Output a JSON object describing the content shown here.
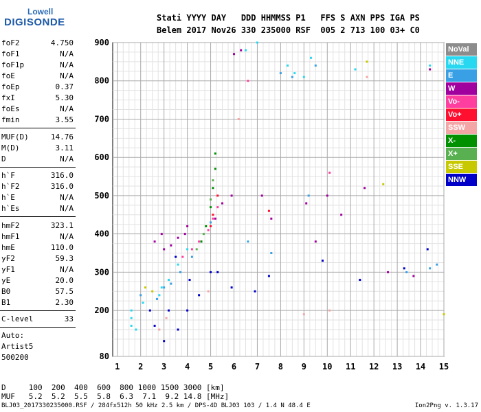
{
  "logo": {
    "top": "Lowell",
    "main": "DIGISONDE"
  },
  "header": {
    "line1": "Stati YYYY DAY   DDD HHMMSS P1   FFS S AXN PPS IGA PS",
    "line2": "Belem 2017 Nov26 330 235000 RSF  005 2 713 100 03+ C0"
  },
  "params": [
    {
      "name": "foF2",
      "value": "4.750"
    },
    {
      "name": "foF1",
      "value": "N/A"
    },
    {
      "name": "foF1p",
      "value": "N/A"
    },
    {
      "name": "foE",
      "value": "N/A"
    },
    {
      "name": "foEp",
      "value": "0.37"
    },
    {
      "name": "fxI",
      "value": "5.30"
    },
    {
      "name": "foEs",
      "value": "N/A"
    },
    {
      "name": "fmin",
      "value": "3.55"
    },
    {
      "name": "MUF(D)",
      "value": "14.76"
    },
    {
      "name": "M(D)",
      "value": "3.11"
    },
    {
      "name": "D",
      "value": "N/A"
    },
    {
      "name": "h`F",
      "value": "316.0"
    },
    {
      "name": "h`F2",
      "value": "316.0"
    },
    {
      "name": "h`E",
      "value": "N/A"
    },
    {
      "name": "h`Es",
      "value": "N/A"
    },
    {
      "name": "hmF2",
      "value": "323.1"
    },
    {
      "name": "hmF1",
      "value": "N/A"
    },
    {
      "name": "hmE",
      "value": "110.0"
    },
    {
      "name": "yF2",
      "value": "59.3"
    },
    {
      "name": "yF1",
      "value": "N/A"
    },
    {
      "name": "yE",
      "value": "20.0"
    },
    {
      "name": "B0",
      "value": "57.5"
    },
    {
      "name": "B1",
      "value": "2.30"
    },
    {
      "name": "C-level",
      "value": "33"
    }
  ],
  "auto": [
    "Auto:",
    "Artist5",
    "500200"
  ],
  "legend": [
    {
      "label": "NoVal",
      "color": "#8c8c8c"
    },
    {
      "label": "NNE",
      "color": "#28d8f0"
    },
    {
      "label": "E",
      "color": "#3aa0e6"
    },
    {
      "label": "W",
      "color": "#a0009e"
    },
    {
      "label": "Vo-",
      "color": "#ff3fa0"
    },
    {
      "label": "Vo+",
      "color": "#ff1030"
    },
    {
      "label": "SSW",
      "color": "#f4a6a6"
    },
    {
      "label": "X-",
      "color": "#009000"
    },
    {
      "label": "X+",
      "color": "#58b050"
    },
    {
      "label": "SSE",
      "color": "#c8c800"
    },
    {
      "label": "NNW",
      "color": "#0000c8"
    }
  ],
  "bottom": {
    "line1": "D     100  200  400  600  800 1000 1500 3000 [km]",
    "line2": "MUF   5.2  5.2  5.5  5.8  6.3  7.1  9.2 14.8 [MHz]"
  },
  "footer": {
    "left": "BLJ03_2017330235000.RSF / 284fx512h 50 kHz 2.5 km / DPS-4D BLJ03 103 / 1.4 N 48.4 E",
    "right": "Ion2Png v. 1.3.17"
  },
  "chart_data": {
    "type": "scatter",
    "xticks": [
      1,
      2,
      3,
      4,
      5,
      6,
      7,
      8,
      9,
      10,
      11,
      12,
      13,
      14,
      15
    ],
    "yticks": [
      80,
      200,
      300,
      400,
      500,
      600,
      700,
      800,
      900
    ],
    "xlim": [
      0.8,
      15
    ],
    "ylim": [
      80,
      900
    ],
    "grid": true,
    "series": [
      {
        "name": "NNE",
        "points": [
          [
            1.6,
            160
          ],
          [
            1.6,
            180
          ],
          [
            1.6,
            200
          ],
          [
            1.8,
            150
          ],
          [
            2.1,
            220
          ],
          [
            2.8,
            240
          ],
          [
            2.9,
            260
          ],
          [
            3.2,
            280
          ],
          [
            3.6,
            320
          ],
          [
            4.0,
            360
          ],
          [
            6.5,
            880
          ],
          [
            7.0,
            900
          ],
          [
            8.3,
            840
          ],
          [
            8.6,
            820
          ],
          [
            9.0,
            810
          ],
          [
            9.3,
            860
          ],
          [
            11.2,
            830
          ],
          [
            14.4,
            840
          ]
        ]
      },
      {
        "name": "E",
        "points": [
          [
            2.0,
            240
          ],
          [
            2.7,
            230
          ],
          [
            3.0,
            260
          ],
          [
            3.3,
            270
          ],
          [
            3.7,
            300
          ],
          [
            4.2,
            340
          ],
          [
            4.6,
            380
          ],
          [
            5.0,
            430
          ],
          [
            6.6,
            380
          ],
          [
            7.6,
            350
          ],
          [
            8.0,
            820
          ],
          [
            8.5,
            810
          ],
          [
            9.2,
            500
          ],
          [
            9.5,
            840
          ],
          [
            13.4,
            300
          ],
          [
            14.4,
            310
          ],
          [
            14.7,
            320
          ]
        ]
      },
      {
        "name": "W",
        "points": [
          [
            2.6,
            380
          ],
          [
            2.9,
            400
          ],
          [
            3.0,
            360
          ],
          [
            3.3,
            370
          ],
          [
            3.6,
            390
          ],
          [
            3.9,
            400
          ],
          [
            4.0,
            420
          ],
          [
            5.2,
            440
          ],
          [
            5.5,
            480
          ],
          [
            5.9,
            500
          ],
          [
            6.0,
            870
          ],
          [
            6.3,
            880
          ],
          [
            7.2,
            500
          ],
          [
            7.6,
            440
          ],
          [
            9.1,
            480
          ],
          [
            9.5,
            380
          ],
          [
            10.0,
            500
          ],
          [
            10.6,
            450
          ],
          [
            11.6,
            520
          ],
          [
            12.6,
            300
          ],
          [
            13.7,
            290
          ],
          [
            14.4,
            830
          ]
        ]
      },
      {
        "name": "Vo-",
        "points": [
          [
            3.8,
            340
          ],
          [
            4.2,
            360
          ],
          [
            4.5,
            380
          ],
          [
            4.9,
            410
          ],
          [
            5.1,
            440
          ],
          [
            5.3,
            470
          ],
          [
            6.6,
            800
          ],
          [
            10.1,
            560
          ]
        ]
      },
      {
        "name": "Vo+",
        "points": [
          [
            5.0,
            420
          ],
          [
            5.1,
            450
          ],
          [
            5.3,
            500
          ],
          [
            7.5,
            460
          ]
        ]
      },
      {
        "name": "SSW",
        "points": [
          [
            2.8,
            150
          ],
          [
            3.1,
            180
          ],
          [
            4.9,
            250
          ],
          [
            6.2,
            700
          ],
          [
            9.0,
            190
          ],
          [
            10.1,
            200
          ],
          [
            11.7,
            810
          ]
        ]
      },
      {
        "name": "X-",
        "points": [
          [
            4.6,
            380
          ],
          [
            4.8,
            420
          ],
          [
            5.0,
            470
          ],
          [
            5.1,
            520
          ],
          [
            5.2,
            570
          ],
          [
            5.2,
            610
          ]
        ]
      },
      {
        "name": "X+",
        "points": [
          [
            4.4,
            360
          ],
          [
            4.7,
            400
          ],
          [
            5.0,
            490
          ],
          [
            5.1,
            540
          ]
        ]
      },
      {
        "name": "SSE",
        "points": [
          [
            2.2,
            260
          ],
          [
            2.5,
            250
          ],
          [
            11.7,
            850
          ],
          [
            12.4,
            530
          ],
          [
            15.0,
            190
          ]
        ]
      },
      {
        "name": "NNW",
        "points": [
          [
            2.4,
            200
          ],
          [
            2.6,
            160
          ],
          [
            3.0,
            120
          ],
          [
            3.2,
            200
          ],
          [
            3.5,
            340
          ],
          [
            3.6,
            150
          ],
          [
            4.0,
            200
          ],
          [
            4.1,
            280
          ],
          [
            4.5,
            240
          ],
          [
            5.0,
            300
          ],
          [
            5.3,
            300
          ],
          [
            5.9,
            260
          ],
          [
            6.9,
            250
          ],
          [
            7.5,
            290
          ],
          [
            9.8,
            330
          ],
          [
            11.4,
            280
          ],
          [
            13.3,
            310
          ],
          [
            14.3,
            360
          ]
        ]
      }
    ]
  }
}
